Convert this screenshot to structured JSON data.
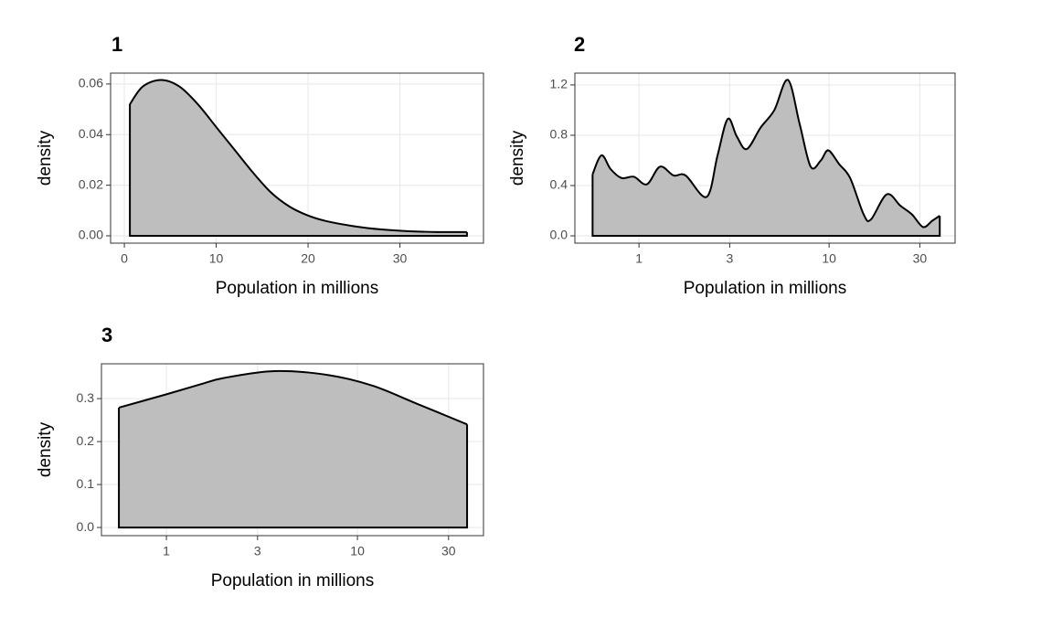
{
  "chart_data": [
    {
      "type": "density",
      "title": "1",
      "x_label": "Population in millions",
      "y_label": "density",
      "x": [
        0.6,
        2,
        4,
        6,
        8,
        10,
        12,
        14,
        16,
        18,
        20,
        22,
        25,
        28,
        31,
        34,
        37.3
      ],
      "values": [
        0.052,
        0.059,
        0.0616,
        0.059,
        0.052,
        0.043,
        0.034,
        0.025,
        0.017,
        0.0115,
        0.008,
        0.0058,
        0.0038,
        0.0025,
        0.0018,
        0.0015,
        0.0015
      ],
      "xlim": [
        -1.5,
        39.1
      ],
      "ylim": [
        -0.0029,
        0.0643
      ],
      "xticks": [
        0,
        10,
        20,
        30
      ],
      "yticks": [
        {
          "value": 0,
          "label": "0.00"
        },
        {
          "value": 0.02,
          "label": "0.02"
        },
        {
          "value": 0.04,
          "label": "0.04"
        },
        {
          "value": 0.06,
          "label": "0.06"
        }
      ],
      "color": "#bebebe",
      "line_color": "#000000",
      "grid": true
    },
    {
      "type": "density",
      "title": "2",
      "x_label": "Population in millions",
      "y_label": "density",
      "xscale": "log",
      "x": [
        0.57,
        0.635,
        0.71,
        0.81,
        0.94,
        1.1,
        1.29,
        1.52,
        1.76,
        2.27,
        2.59,
        2.93,
        3.27,
        3.69,
        4.36,
        5.15,
        6.07,
        7.0,
        8.0,
        9.05,
        9.9,
        11.3,
        12.9,
        15.2,
        16.6,
        20.1,
        23.7,
        27.3,
        31.2,
        34.9,
        38.2
      ],
      "values": [
        0.49,
        0.64,
        0.53,
        0.46,
        0.47,
        0.41,
        0.55,
        0.48,
        0.48,
        0.31,
        0.64,
        0.93,
        0.79,
        0.69,
        0.86,
        1.0,
        1.24,
        0.89,
        0.55,
        0.6,
        0.68,
        0.57,
        0.46,
        0.17,
        0.13,
        0.33,
        0.24,
        0.17,
        0.07,
        0.12,
        0.16
      ],
      "xlim": [
        0.46,
        46.0
      ],
      "ylim": [
        -0.058,
        1.294
      ],
      "xticks": [
        1,
        3,
        10,
        30
      ],
      "yticks": [
        {
          "value": 0,
          "label": "0.0"
        },
        0.4,
        0.8,
        1.2
      ],
      "color": "#bebebe",
      "line_color": "#000000",
      "grid": true
    },
    {
      "type": "density",
      "title": "3",
      "x_label": "Population in millions",
      "y_label": "density",
      "xscale": "log",
      "x": [
        0.564,
        1,
        1.5,
        2,
        3.67,
        7,
        12,
        20,
        37.5
      ],
      "values": [
        0.279,
        0.31,
        0.333,
        0.348,
        0.364,
        0.355,
        0.33,
        0.29,
        0.24
      ],
      "xlim": [
        0.457,
        45.7
      ],
      "ylim": [
        -0.019,
        0.381
      ],
      "xticks": [
        1,
        3,
        10,
        30
      ],
      "yticks": [
        {
          "value": 0,
          "label": "0.0"
        },
        0.1,
        0.2,
        0.3
      ],
      "color": "#bebebe",
      "line_color": "#000000",
      "grid": true
    }
  ]
}
